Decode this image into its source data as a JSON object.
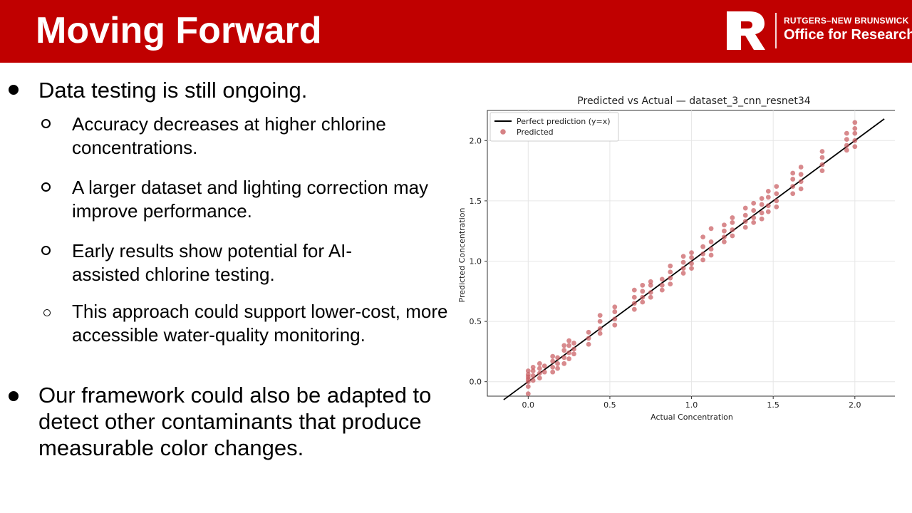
{
  "header": {
    "title": "Moving Forward",
    "logo_line1": "RUTGERS–NEW BRUNSWICK",
    "logo_line2": "Office for Research",
    "color": "#c00000"
  },
  "bullets": [
    {
      "text": "Data testing is still ongoing."
    },
    {
      "text": "Accuracy decreases at higher chlorine concentrations."
    },
    {
      "text": "A larger dataset and lighting correction may improve performance."
    },
    {
      "text": "Early results show potential for AI-assisted chlorine testing."
    },
    {
      "text": "This approach could support lower-cost, more accessible water-quality monitoring."
    },
    {
      "text": "Our framework could also be adapted to detect other contaminants that produce measurable color changes."
    }
  ],
  "chart_data": {
    "type": "scatter",
    "title": "Predicted vs Actual — dataset_3_cnn_resnet34",
    "xlabel": "Actual Concentration",
    "ylabel": "Predicted Concentration",
    "xlim": [
      -0.25,
      2.28
    ],
    "ylim": [
      -0.12,
      2.25
    ],
    "xticks": [
      "0.0",
      "0.5",
      "1.0",
      "1.5",
      "2.0"
    ],
    "yticks": [
      "0.0",
      "0.5",
      "1.0",
      "1.5",
      "2.0"
    ],
    "grid": true,
    "legend_position": "top-left",
    "legend": [
      "Perfect prediction (y=x)",
      "Predicted"
    ],
    "reference_line": {
      "x": [
        -0.15,
        2.18
      ],
      "y": [
        -0.15,
        2.18
      ],
      "color": "#000000"
    },
    "point_color": "#c8585c",
    "points": [
      [
        0.0,
        0.02
      ],
      [
        0.0,
        0.06
      ],
      [
        0.0,
        -0.04
      ],
      [
        0.0,
        0.09
      ],
      [
        0.0,
        -0.1
      ],
      [
        0.0,
        0.04
      ],
      [
        0.0,
        0.0
      ],
      [
        0.03,
        0.05
      ],
      [
        0.03,
        0.09
      ],
      [
        0.03,
        0.01
      ],
      [
        0.03,
        0.12
      ],
      [
        0.07,
        0.07
      ],
      [
        0.07,
        0.11
      ],
      [
        0.07,
        0.03
      ],
      [
        0.07,
        0.15
      ],
      [
        0.1,
        0.08
      ],
      [
        0.1,
        0.13
      ],
      [
        0.15,
        0.12
      ],
      [
        0.15,
        0.17
      ],
      [
        0.15,
        0.08
      ],
      [
        0.15,
        0.21
      ],
      [
        0.18,
        0.15
      ],
      [
        0.18,
        0.2
      ],
      [
        0.18,
        0.11
      ],
      [
        0.22,
        0.2
      ],
      [
        0.22,
        0.26
      ],
      [
        0.22,
        0.15
      ],
      [
        0.22,
        0.3
      ],
      [
        0.25,
        0.24
      ],
      [
        0.25,
        0.3
      ],
      [
        0.25,
        0.19
      ],
      [
        0.25,
        0.34
      ],
      [
        0.28,
        0.27
      ],
      [
        0.28,
        0.32
      ],
      [
        0.28,
        0.23
      ],
      [
        0.37,
        0.36
      ],
      [
        0.37,
        0.41
      ],
      [
        0.37,
        0.31
      ],
      [
        0.44,
        0.44
      ],
      [
        0.44,
        0.5
      ],
      [
        0.44,
        0.4
      ],
      [
        0.44,
        0.55
      ],
      [
        0.53,
        0.52
      ],
      [
        0.53,
        0.58
      ],
      [
        0.53,
        0.47
      ],
      [
        0.53,
        0.62
      ],
      [
        0.65,
        0.65
      ],
      [
        0.65,
        0.7
      ],
      [
        0.65,
        0.6
      ],
      [
        0.65,
        0.76
      ],
      [
        0.7,
        0.7
      ],
      [
        0.7,
        0.75
      ],
      [
        0.7,
        0.66
      ],
      [
        0.7,
        0.8
      ],
      [
        0.75,
        0.74
      ],
      [
        0.75,
        0.8
      ],
      [
        0.75,
        0.7
      ],
      [
        0.75,
        0.83
      ],
      [
        0.82,
        0.8
      ],
      [
        0.82,
        0.76
      ],
      [
        0.82,
        0.85
      ],
      [
        0.87,
        0.86
      ],
      [
        0.87,
        0.91
      ],
      [
        0.87,
        0.81
      ],
      [
        0.87,
        0.96
      ],
      [
        0.95,
        0.94
      ],
      [
        0.95,
        0.99
      ],
      [
        0.95,
        0.9
      ],
      [
        0.95,
        1.04
      ],
      [
        1.0,
        0.98
      ],
      [
        1.0,
        1.03
      ],
      [
        1.0,
        0.94
      ],
      [
        1.0,
        1.07
      ],
      [
        1.07,
        1.06
      ],
      [
        1.07,
        1.12
      ],
      [
        1.07,
        1.01
      ],
      [
        1.07,
        1.2
      ],
      [
        1.12,
        1.1
      ],
      [
        1.12,
        1.16
      ],
      [
        1.12,
        1.05
      ],
      [
        1.12,
        1.27
      ],
      [
        1.2,
        1.2
      ],
      [
        1.2,
        1.25
      ],
      [
        1.2,
        1.16
      ],
      [
        1.2,
        1.3
      ],
      [
        1.25,
        1.26
      ],
      [
        1.25,
        1.32
      ],
      [
        1.25,
        1.21
      ],
      [
        1.25,
        1.36
      ],
      [
        1.33,
        1.33
      ],
      [
        1.33,
        1.38
      ],
      [
        1.33,
        1.28
      ],
      [
        1.33,
        1.44
      ],
      [
        1.38,
        1.36
      ],
      [
        1.38,
        1.42
      ],
      [
        1.38,
        1.32
      ],
      [
        1.38,
        1.48
      ],
      [
        1.43,
        1.4
      ],
      [
        1.43,
        1.47
      ],
      [
        1.43,
        1.35
      ],
      [
        1.43,
        1.52
      ],
      [
        1.47,
        1.46
      ],
      [
        1.47,
        1.53
      ],
      [
        1.47,
        1.41
      ],
      [
        1.47,
        1.58
      ],
      [
        1.52,
        1.5
      ],
      [
        1.52,
        1.56
      ],
      [
        1.52,
        1.45
      ],
      [
        1.52,
        1.62
      ],
      [
        1.62,
        1.62
      ],
      [
        1.62,
        1.68
      ],
      [
        1.62,
        1.56
      ],
      [
        1.62,
        1.73
      ],
      [
        1.67,
        1.66
      ],
      [
        1.67,
        1.72
      ],
      [
        1.67,
        1.6
      ],
      [
        1.67,
        1.78
      ],
      [
        1.8,
        1.8
      ],
      [
        1.8,
        1.86
      ],
      [
        1.8,
        1.75
      ],
      [
        1.8,
        1.91
      ],
      [
        1.95,
        1.96
      ],
      [
        1.95,
        2.01
      ],
      [
        1.95,
        1.92
      ],
      [
        1.95,
        2.06
      ],
      [
        2.0,
        2.0
      ],
      [
        2.0,
        2.06
      ],
      [
        2.0,
        1.95
      ],
      [
        2.0,
        2.1
      ],
      [
        2.0,
        2.15
      ]
    ]
  }
}
